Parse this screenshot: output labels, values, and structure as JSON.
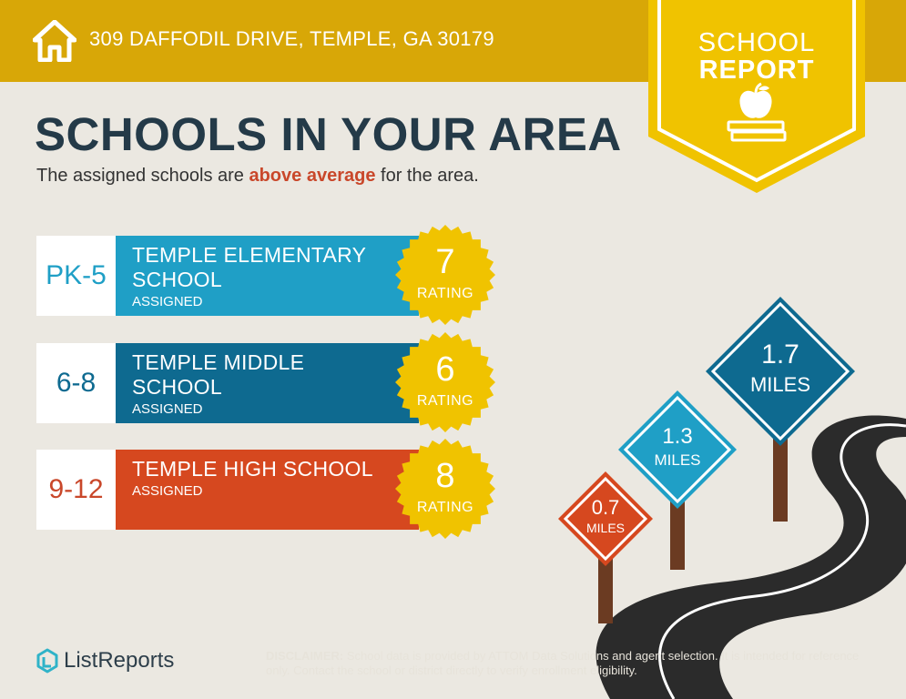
{
  "header": {
    "address": "309 DAFFODIL DRIVE, TEMPLE, GA 30179",
    "icon": "home-icon"
  },
  "badge": {
    "line1": "SCHOOL",
    "line2": "REPORT",
    "icon": "apple-on-book-icon"
  },
  "title": "SCHOOLS IN YOUR AREA",
  "subtitle": {
    "before": "The assigned schools are ",
    "highlight": "above average",
    "after": " for the area."
  },
  "schools": [
    {
      "grades": "PK-5",
      "name_line1": "TEMPLE ELEMENTARY",
      "name_line2": "SCHOOL",
      "status": "ASSIGNED",
      "rating": "7",
      "rating_label": "RATING",
      "color": "#1f9fc6",
      "grade_color": "#1f9fc6"
    },
    {
      "grades": "6-8",
      "name_line1": "TEMPLE MIDDLE",
      "name_line2": "SCHOOL",
      "status": "ASSIGNED",
      "rating": "6",
      "rating_label": "RATING",
      "color": "#0e6a90",
      "grade_color": "#0e6a90"
    },
    {
      "grades": "9-12",
      "name_line1": "TEMPLE HIGH SCHOOL",
      "name_line2": "",
      "status": "ASSIGNED",
      "rating": "8",
      "rating_label": "RATING",
      "color": "#d6481f",
      "grade_color": "#c9472a"
    }
  ],
  "signs": [
    {
      "number": "0.7",
      "unit": "MILES",
      "color": "#d6481f"
    },
    {
      "number": "1.3",
      "unit": "MILES",
      "color": "#1f9fc6"
    },
    {
      "number": "1.7",
      "unit": "MILES",
      "color": "#0e6a90"
    }
  ],
  "colors": {
    "header": "#d8a707",
    "badge": "#f0c300",
    "seal": "#f0c300",
    "road": "#2b2b2b",
    "post": "#6b3b22"
  },
  "footer": {
    "logo": "ListReports",
    "disclaimer_label": "DISCLAIMER:",
    "disclaimer_text": " School data is provided by ATTOM Data Solutions and agent selection. It is intended for reference only. Contact the school or district directly to verify enrollment eligibility."
  }
}
